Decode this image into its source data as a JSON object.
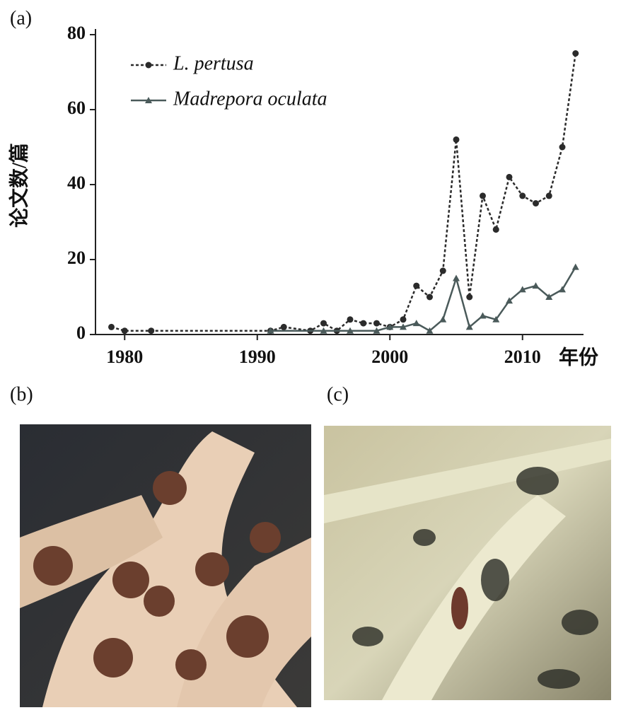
{
  "panel_labels": [
    "(a)",
    "(b)",
    "(c)"
  ],
  "chart_data": {
    "type": "line",
    "y_label": "论文数/篇",
    "x_label": "年份",
    "xlim": [
      1977.8,
      2014.6
    ],
    "xticks": [
      1980,
      1990,
      2000,
      2010
    ],
    "ylim": [
      0,
      80
    ],
    "yticks": [
      0,
      20,
      40,
      60,
      80
    ],
    "legend": "upper left",
    "series": [
      {
        "name": "L. pertusa",
        "color": "#2b2b2b",
        "line_style": "dotted",
        "marker": "circle",
        "x": [
          1979,
          1980,
          1982,
          1991,
          1992,
          1994,
          1995,
          1996,
          1997,
          1998,
          1999,
          2000,
          2001,
          2002,
          2003,
          2004,
          2005,
          2006,
          2007,
          2008,
          2009,
          2010,
          2011,
          2012,
          2013,
          2014
        ],
        "values": [
          2,
          1,
          1,
          1,
          2,
          1,
          3,
          1,
          4,
          3,
          3,
          2,
          4,
          13,
          10,
          17,
          52,
          10,
          37,
          28,
          42,
          37,
          35,
          37,
          50,
          75
        ]
      },
      {
        "name": "Madrepora oculata",
        "color": "#4a5a5a",
        "line_style": "solid",
        "marker": "triangle",
        "x": [
          1991,
          1995,
          1997,
          1999,
          2000,
          2001,
          2002,
          2003,
          2004,
          2005,
          2006,
          2007,
          2008,
          2009,
          2010,
          2011,
          2012,
          2013,
          2014
        ],
        "values": [
          1,
          1,
          1,
          1,
          2,
          2,
          3,
          1,
          4,
          15,
          2,
          5,
          4,
          9,
          12,
          13,
          10,
          12,
          18
        ]
      }
    ]
  }
}
